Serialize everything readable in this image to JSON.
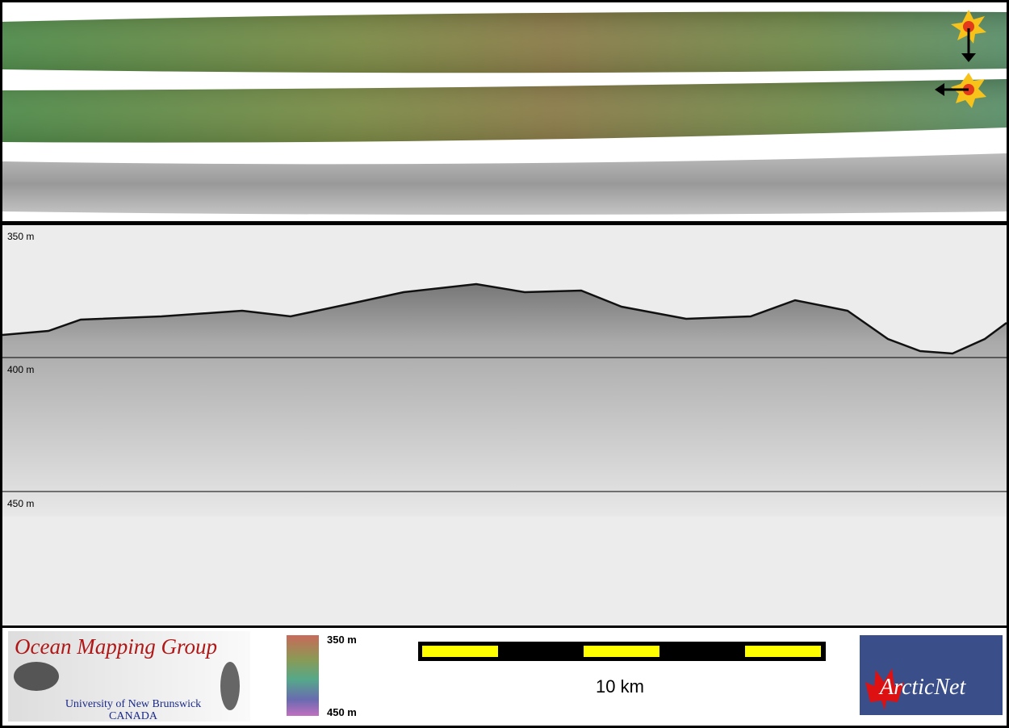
{
  "depth_labels": [
    "350 m",
    "400 m",
    "450 m"
  ],
  "colorbar": {
    "top": "350 m",
    "bottom": "450 m"
  },
  "scale_bar": {
    "label": "10 km"
  },
  "logos": {
    "omg_title": "Ocean Mapping Group",
    "omg_univ": "University of New Brunswick",
    "omg_country": "CANADA",
    "arcticnet": "ArcticNet"
  }
}
